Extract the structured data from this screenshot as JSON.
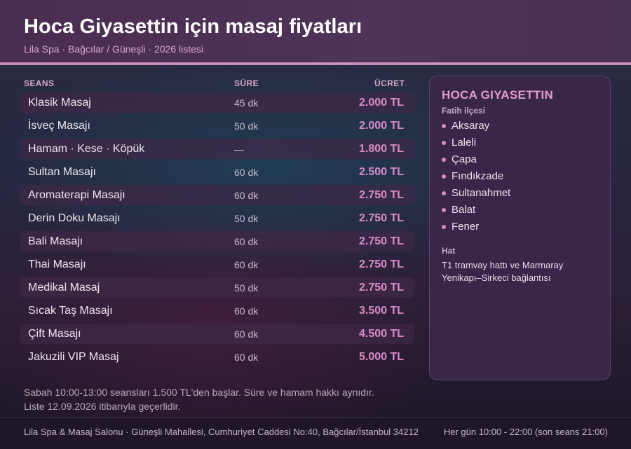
{
  "header": {
    "title": "Hoca Giyasettin için masaj fiyatları",
    "subtitle": "Lila Spa · Bağcılar / Güneşli · 2026 listesi"
  },
  "table": {
    "headers": {
      "session": "SEANS",
      "duration": "SÜRE",
      "price": "ÜCRET"
    },
    "rows": [
      {
        "name": "Klasik Masaj",
        "duration": "45 dk",
        "price": "2.000 TL"
      },
      {
        "name": "İsveç Masajı",
        "duration": "50 dk",
        "price": "2.000 TL"
      },
      {
        "name": "Hamam · Kese · Köpük",
        "duration": "—",
        "price": "1.800 TL"
      },
      {
        "name": "Sultan Masajı",
        "duration": "60 dk",
        "price": "2.500 TL"
      },
      {
        "name": "Aromaterapi Masajı",
        "duration": "60 dk",
        "price": "2.750 TL"
      },
      {
        "name": "Derin Doku Masajı",
        "duration": "50 dk",
        "price": "2.750 TL"
      },
      {
        "name": "Bali Masajı",
        "duration": "60 dk",
        "price": "2.750 TL"
      },
      {
        "name": "Thai Masajı",
        "duration": "60 dk",
        "price": "2.750 TL"
      },
      {
        "name": "Medikal Masaj",
        "duration": "50 dk",
        "price": "2.750 TL"
      },
      {
        "name": "Sıcak Taş Masajı",
        "duration": "60 dk",
        "price": "3.500 TL"
      },
      {
        "name": "Çift Masajı",
        "duration": "60 dk",
        "price": "4.500 TL"
      },
      {
        "name": "Jakuzili VIP Masaj",
        "duration": "60 dk",
        "price": "5.000 TL"
      }
    ]
  },
  "notes": {
    "line1": "Sabah 10:00-13:00 seansları 1.500 TL'den başlar. Süre ve hamam hakkı aynıdır.",
    "line2": "Liste 12.09.2026 itibarıyla geçerlidir."
  },
  "panel": {
    "title": "HOCA GIYASETTIN",
    "district_label": "Fatih ilçesi",
    "neighborhoods": [
      "Aksaray",
      "Laleli",
      "Çapa",
      "Fındıkzade",
      "Sultanahmet",
      "Balat",
      "Fener"
    ],
    "transit_label": "Hat",
    "transit_text": "T1 tramvay hattı ve Marmaray Yenikapı–Sirkeci bağlantısı"
  },
  "footer": {
    "address": "Lila Spa & Masaj Salonu · Güneşli Mahallesi, Cumhuriyet Caddesi No:40, Bağcılar/İstanbul 34212",
    "hours": "Her gün 10:00 - 22:00 (son seans 21:00)"
  }
}
